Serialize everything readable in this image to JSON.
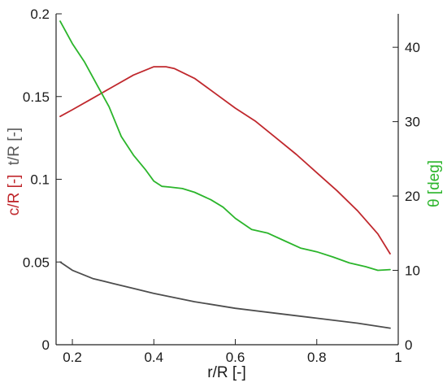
{
  "chart_data": {
    "type": "line",
    "x_axis": {
      "label": "r/R [-]",
      "range": [
        0.16,
        1.0
      ],
      "ticks": [
        0.2,
        0.4,
        0.6,
        0.8,
        1
      ]
    },
    "y_left_axis": {
      "label_parts": [
        {
          "text": "c/R [-]",
          "color": "#c0282d"
        },
        {
          "text": "t/R [-]",
          "color": "#5a5a5a"
        }
      ],
      "range": [
        0,
        0.2
      ],
      "ticks": [
        0,
        0.05,
        0.1,
        0.15,
        0.2
      ]
    },
    "y_right_axis": {
      "label": "θ [deg]",
      "label_color": "#2bb52b",
      "range": [
        0,
        44.5
      ],
      "ticks": [
        0,
        10,
        20,
        30,
        40
      ]
    },
    "series": [
      {
        "name": "c/R [-]",
        "axis": "left",
        "color": "#c0282d",
        "x": [
          0.17,
          0.2,
          0.25,
          0.3,
          0.35,
          0.4,
          0.43,
          0.45,
          0.5,
          0.55,
          0.6,
          0.65,
          0.7,
          0.75,
          0.8,
          0.85,
          0.9,
          0.95,
          0.98
        ],
        "y": [
          0.138,
          0.142,
          0.149,
          0.156,
          0.163,
          0.168,
          0.168,
          0.167,
          0.161,
          0.152,
          0.143,
          0.135,
          0.125,
          0.115,
          0.104,
          0.093,
          0.081,
          0.067,
          0.055
        ]
      },
      {
        "name": "t/R [-]",
        "axis": "left",
        "color": "#4d4d4d",
        "x": [
          0.17,
          0.2,
          0.25,
          0.3,
          0.35,
          0.4,
          0.5,
          0.6,
          0.7,
          0.8,
          0.9,
          0.98
        ],
        "y": [
          0.05,
          0.045,
          0.04,
          0.037,
          0.034,
          0.031,
          0.026,
          0.022,
          0.019,
          0.016,
          0.013,
          0.01
        ]
      },
      {
        "name": "θ [deg]",
        "axis": "right",
        "color": "#2bb52b",
        "x": [
          0.17,
          0.2,
          0.23,
          0.26,
          0.29,
          0.32,
          0.35,
          0.38,
          0.4,
          0.42,
          0.44,
          0.47,
          0.5,
          0.54,
          0.57,
          0.6,
          0.64,
          0.68,
          0.72,
          0.76,
          0.8,
          0.84,
          0.88,
          0.92,
          0.95,
          0.98
        ],
        "y": [
          43.5,
          40.5,
          38.0,
          35.0,
          32.0,
          28.0,
          25.5,
          23.5,
          22.0,
          21.3,
          21.2,
          21.0,
          20.5,
          19.5,
          18.5,
          17.0,
          15.5,
          15.0,
          14.0,
          13.0,
          12.5,
          11.8,
          11.0,
          10.5,
          10.0,
          10.1
        ]
      }
    ],
    "grid": false,
    "legend": "none"
  }
}
